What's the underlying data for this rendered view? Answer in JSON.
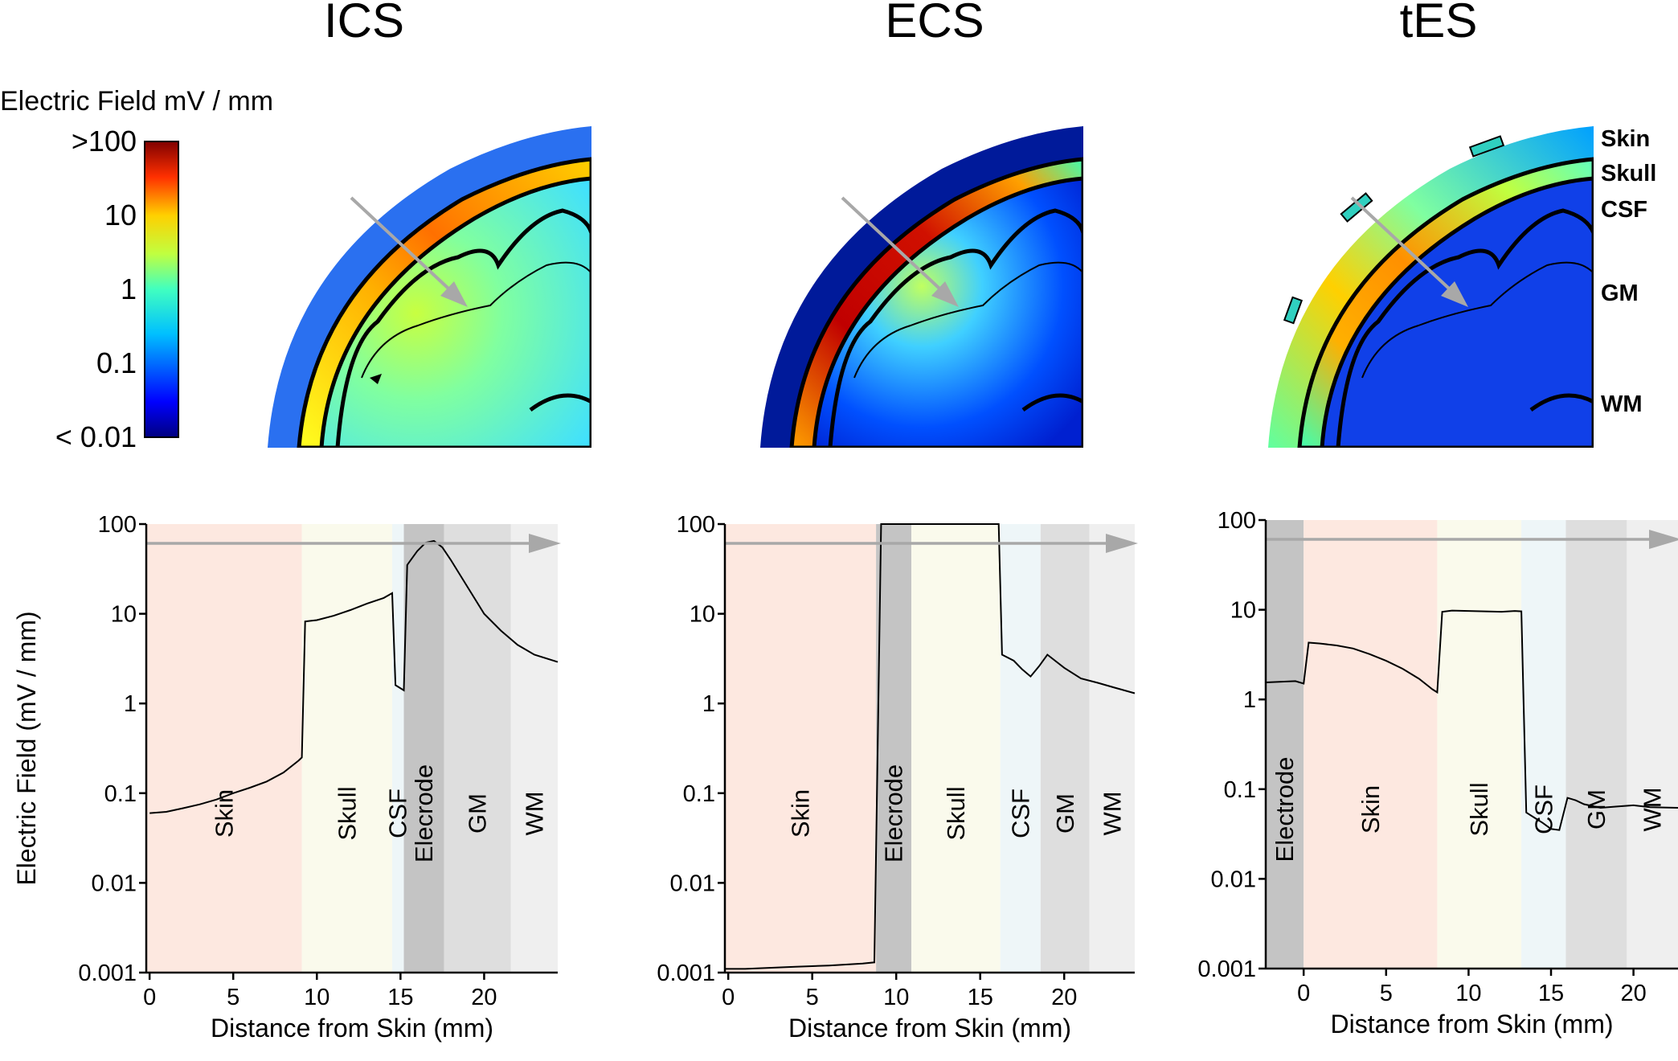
{
  "colorbar": {
    "title": "Electric Field mV / mm",
    "labels": [
      ">100",
      "10",
      "1",
      "0.1",
      "< 0.01"
    ],
    "label_values": [
      100,
      10,
      1,
      0.1,
      0.01
    ]
  },
  "tissue_labels": [
    "Skin",
    "Skull",
    "CSF",
    "GM",
    "WM"
  ],
  "colors": {
    "region_skin": "#fde8e0",
    "region_skull": "#fafaec",
    "region_csf": "#eef6f8",
    "region_electrode": "#c4c4c4",
    "region_gm": "#dedede",
    "region_wm": "#efefef",
    "arrow": "#a8a8a8"
  },
  "chart_data": [
    {
      "type": "line",
      "title": "ICS",
      "xlabel": "Distance from Skin (mm)",
      "ylabel": "Electric Field (mV / mm)",
      "yscale": "log",
      "xlim": [
        -0.2,
        24.4
      ],
      "ylim": [
        0.001,
        100
      ],
      "xticks": [
        0,
        5,
        10,
        15,
        20
      ],
      "xtick_labels": [
        "0",
        "5",
        "10",
        "15",
        "20"
      ],
      "yticks": [
        0.001,
        0.01,
        0.1,
        1,
        10,
        100
      ],
      "ytick_labels": [
        "0.001",
        "0.01",
        "0.1",
        "1",
        "10",
        "100"
      ],
      "regions": [
        {
          "label": "Skin",
          "start": -0.2,
          "end": 9.1,
          "color_key": "region_skin"
        },
        {
          "label": "Skull",
          "start": 9.1,
          "end": 14.5,
          "color_key": "region_skull"
        },
        {
          "label": "CSF",
          "start": 14.5,
          "end": 15.2,
          "color_key": "region_csf"
        },
        {
          "label": "Elecrode",
          "start": 15.2,
          "end": 17.6,
          "color_key": "region_electrode"
        },
        {
          "label": "GM",
          "start": 17.6,
          "end": 21.6,
          "color_key": "region_gm"
        },
        {
          "label": "WM",
          "start": 21.6,
          "end": 24.4,
          "color_key": "region_wm"
        }
      ],
      "x": [
        0,
        1,
        2,
        3,
        4,
        5,
        6,
        7,
        8,
        8.9,
        9.1,
        9.3,
        10,
        11,
        12,
        13,
        14,
        14.5,
        14.7,
        15.2,
        15.4,
        16,
        16.5,
        17,
        17.5,
        18,
        19,
        20,
        21,
        22,
        23,
        24.4
      ],
      "y": [
        0.06,
        0.062,
        0.068,
        0.075,
        0.085,
        0.1,
        0.115,
        0.135,
        0.17,
        0.23,
        0.25,
        8.2,
        8.5,
        9.5,
        11,
        13,
        15,
        17,
        1.6,
        1.4,
        35,
        50,
        62,
        65,
        55,
        40,
        20,
        10,
        6.5,
        4.5,
        3.5,
        2.9
      ]
    },
    {
      "type": "line",
      "title": "ECS",
      "xlabel": "Distance from Skin (mm)",
      "ylabel": "",
      "yscale": "log",
      "xlim": [
        -0.2,
        24.2
      ],
      "ylim": [
        0.001,
        100
      ],
      "xticks": [
        0,
        5,
        10,
        15,
        20
      ],
      "xtick_labels": [
        "0",
        "5",
        "10",
        "15",
        "20"
      ],
      "yticks": [
        0.001,
        0.01,
        0.1,
        1,
        10,
        100
      ],
      "ytick_labels": [
        "0.001",
        "0.01",
        "0.1",
        "1",
        "10",
        "100"
      ],
      "regions": [
        {
          "label": "Skin",
          "start": -0.2,
          "end": 8.8,
          "color_key": "region_skin"
        },
        {
          "label": "Elecrode",
          "start": 8.8,
          "end": 10.9,
          "color_key": "region_electrode"
        },
        {
          "label": "Skull",
          "start": 10.9,
          "end": 16.2,
          "color_key": "region_skull"
        },
        {
          "label": "CSF",
          "start": 16.2,
          "end": 18.6,
          "color_key": "region_csf"
        },
        {
          "label": "GM",
          "start": 18.6,
          "end": 21.5,
          "color_key": "region_gm"
        },
        {
          "label": "WM",
          "start": 21.5,
          "end": 24.2,
          "color_key": "region_wm"
        }
      ],
      "x": [
        -0.2,
        1,
        2,
        3,
        4,
        5,
        6,
        7,
        8,
        8.7,
        9.1,
        16.1,
        16.3,
        17,
        17.5,
        18,
        18.5,
        19,
        20,
        21,
        22,
        23,
        24.2
      ],
      "y": [
        0.0011,
        0.0011,
        0.00112,
        0.00114,
        0.00116,
        0.00118,
        0.0012,
        0.00123,
        0.00126,
        0.0013,
        100,
        100,
        3.5,
        3.0,
        2.4,
        2.0,
        2.6,
        3.5,
        2.5,
        1.9,
        1.7,
        1.5,
        1.3
      ]
    },
    {
      "type": "line",
      "title": "tES",
      "xlabel": "Distance from Skin (mm)",
      "ylabel": "",
      "yscale": "log",
      "xlim": [
        -2.3,
        22.7
      ],
      "ylim": [
        0.001,
        100
      ],
      "xticks": [
        0,
        5,
        10,
        15,
        20
      ],
      "xtick_labels": [
        "0",
        "5",
        "10",
        "15",
        "20"
      ],
      "yticks": [
        0.001,
        0.01,
        0.1,
        1,
        10,
        100
      ],
      "ytick_labels": [
        "0.001",
        "0.01",
        "0.1",
        "1",
        "10",
        "100"
      ],
      "regions": [
        {
          "label": "Electrode",
          "start": -2.3,
          "end": 0,
          "color_key": "region_electrode"
        },
        {
          "label": "Skin",
          "start": 0,
          "end": 8.1,
          "color_key": "region_skin"
        },
        {
          "label": "Skull",
          "start": 8.1,
          "end": 13.2,
          "color_key": "region_skull"
        },
        {
          "label": "CSF",
          "start": 13.2,
          "end": 15.9,
          "color_key": "region_csf"
        },
        {
          "label": "GM",
          "start": 15.9,
          "end": 19.6,
          "color_key": "region_gm"
        },
        {
          "label": "WM",
          "start": 19.6,
          "end": 22.7,
          "color_key": "region_wm"
        }
      ],
      "x": [
        -2.3,
        -0.5,
        0,
        0.3,
        1,
        2,
        3,
        4,
        5,
        6,
        7,
        7.8,
        8.1,
        8.4,
        9,
        10,
        11,
        12,
        12.8,
        13.2,
        13.5,
        14,
        14.5,
        15,
        15.5,
        16,
        16.5,
        17,
        18,
        19,
        20,
        21,
        22.7
      ],
      "y": [
        1.55,
        1.6,
        1.5,
        4.3,
        4.2,
        4.0,
        3.7,
        3.2,
        2.7,
        2.2,
        1.7,
        1.3,
        1.2,
        9.5,
        9.8,
        9.7,
        9.6,
        9.5,
        9.7,
        9.6,
        0.055,
        0.048,
        0.042,
        0.036,
        0.035,
        0.08,
        0.075,
        0.068,
        0.062,
        0.064,
        0.066,
        0.063,
        0.062
      ]
    }
  ]
}
